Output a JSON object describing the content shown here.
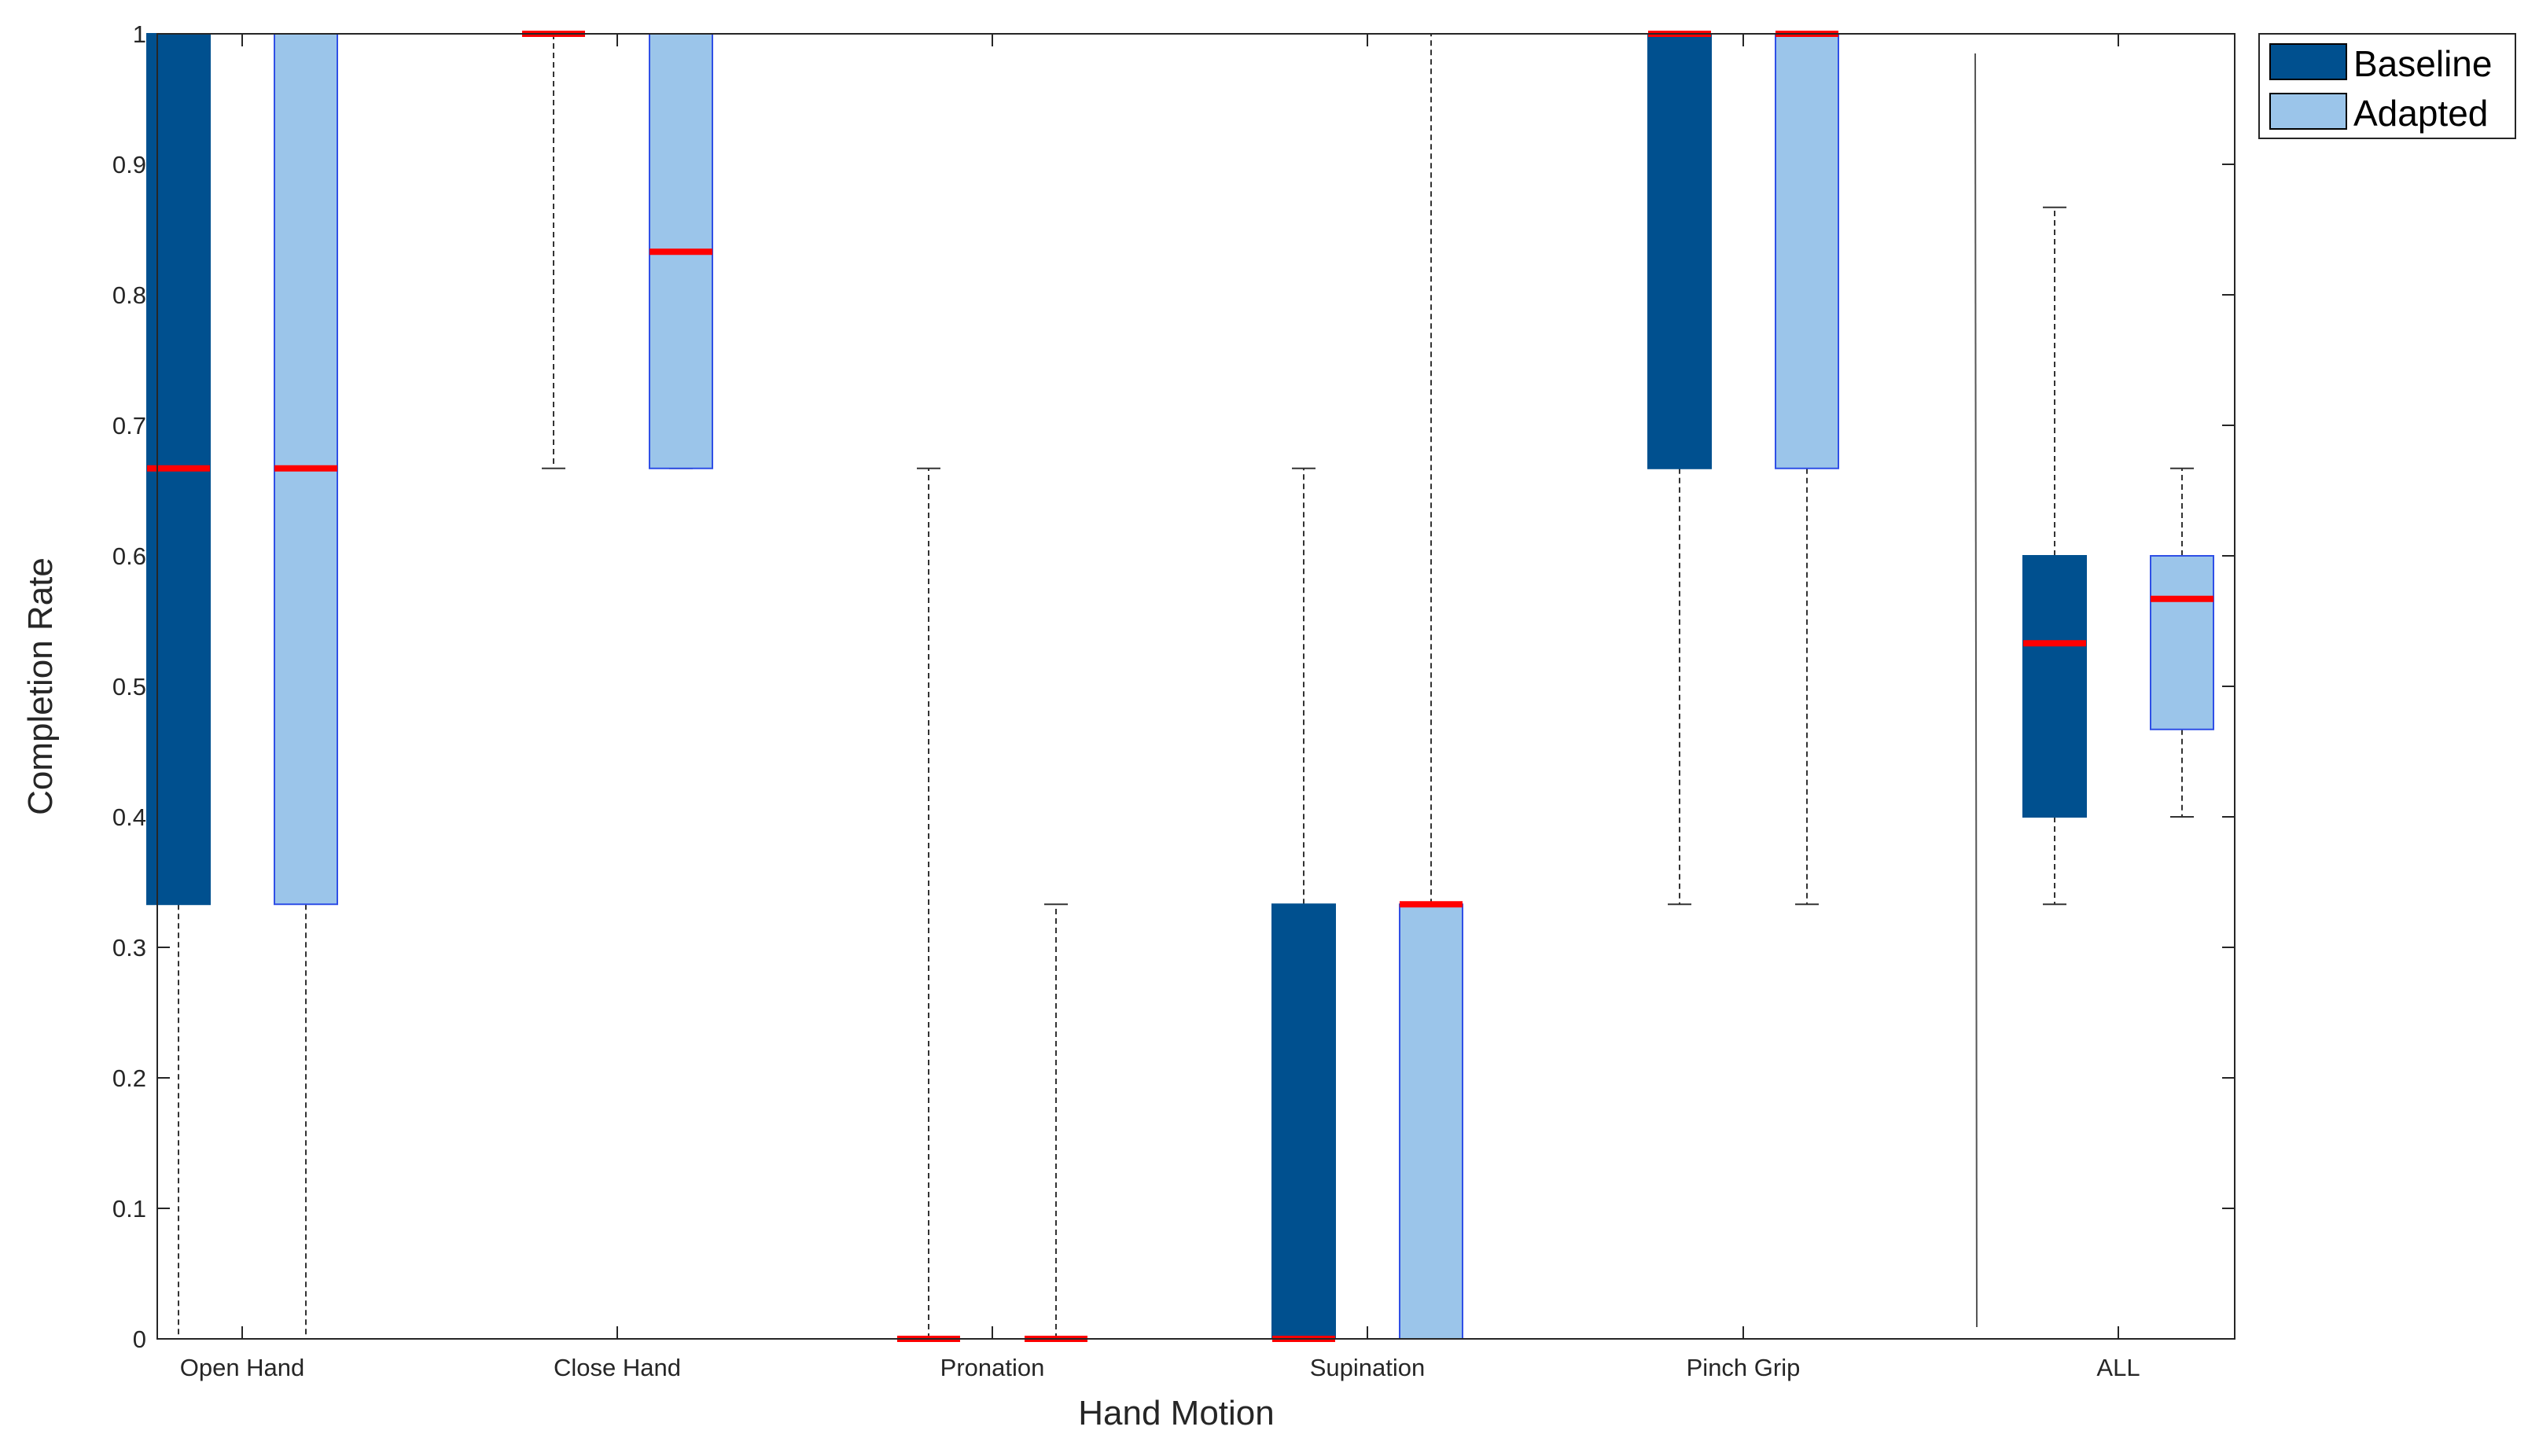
{
  "colors": {
    "baseline": "#00508f",
    "adapted": "#9bc5ea",
    "adapted_edge": "#2f4fe6",
    "median": "#ff0000",
    "whisker": "#333333",
    "axis": "#262626"
  },
  "chart_data": {
    "type": "boxplot",
    "title": "",
    "xlabel": "Hand Motion",
    "ylabel": "Completion Rate",
    "ylim": [
      0,
      1
    ],
    "yticks": [
      "0",
      "0.1",
      "0.2",
      "0.3",
      "0.4",
      "0.5",
      "0.6",
      "0.7",
      "0.8",
      "0.9",
      "1"
    ],
    "categories": [
      "Open Hand",
      "Close Hand",
      "Pronation",
      "Supination",
      "Pinch Grip",
      "ALL"
    ],
    "legend": {
      "position": "outside-top-right",
      "entries": [
        "Baseline",
        "Adapted"
      ]
    },
    "series": [
      {
        "name": "Baseline",
        "boxes": [
          {
            "min": 0,
            "q1": 0.333,
            "median": 0.667,
            "q3": 1,
            "max": 1
          },
          {
            "min": 0.667,
            "q1": 1,
            "median": 1,
            "q3": 1,
            "max": 1
          },
          {
            "min": 0,
            "q1": 0,
            "median": 0,
            "q3": 0,
            "max": 0.667
          },
          {
            "min": 0,
            "q1": 0,
            "median": 0,
            "q3": 0.333,
            "max": 0.667
          },
          {
            "min": 0.333,
            "q1": 0.667,
            "median": 1,
            "q3": 1,
            "max": 1
          },
          {
            "min": 0.333,
            "q1": 0.4,
            "median": 0.533,
            "q3": 0.6,
            "max": 0.867
          }
        ]
      },
      {
        "name": "Adapted",
        "boxes": [
          {
            "min": 0,
            "q1": 0.333,
            "median": 0.667,
            "q3": 1,
            "max": 1
          },
          {
            "min": 0.667,
            "q1": 0.667,
            "median": 0.833,
            "q3": 1,
            "max": 1
          },
          {
            "min": 0,
            "q1": 0,
            "median": 0,
            "q3": 0,
            "max": 0.333
          },
          {
            "min": 0,
            "q1": 0,
            "median": 0.333,
            "q3": 0.333,
            "max": 1
          },
          {
            "min": 0.333,
            "q1": 0.667,
            "median": 1,
            "q3": 1,
            "max": 1
          },
          {
            "min": 0.4,
            "q1": 0.467,
            "median": 0.567,
            "q3": 0.6,
            "max": 0.667
          }
        ]
      }
    ]
  }
}
